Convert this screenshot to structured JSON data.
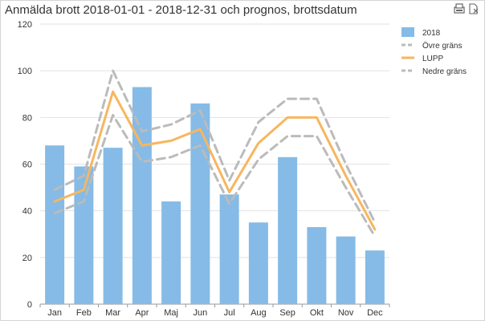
{
  "colors": {
    "bar": "#85bbe6",
    "upper": "#bbbbbb",
    "lower": "#bbbbbb",
    "forecast": "#f7b65f",
    "grid": "#e2e2e2",
    "text": "#333333"
  },
  "toolbar": {
    "icons": [
      "export-icon",
      "clear-selection-icon"
    ]
  },
  "chart_data": {
    "type": "bar",
    "title": "Anmälda brott 2018-01-01 - 2018-12-31 och prognos, brottsdatum",
    "xlabel": "",
    "ylabel": "",
    "ylim": [
      0,
      120
    ],
    "yticks": [
      0,
      20,
      40,
      60,
      80,
      100,
      120
    ],
    "grid": true,
    "legend_position": "top-right",
    "categories": [
      "Jan",
      "Feb",
      "Mar",
      "Apr",
      "Maj",
      "Jun",
      "Jul",
      "Aug",
      "Sep",
      "Okt",
      "Nov",
      "Dec"
    ],
    "series": [
      {
        "name": "2018",
        "kind": "bar",
        "values": [
          68,
          59,
          67,
          93,
          44,
          86,
          47,
          35,
          63,
          33,
          29,
          23
        ]
      },
      {
        "name": "Övre gräns",
        "kind": "dashed-line",
        "values": [
          49,
          55,
          100,
          74,
          77,
          83,
          53,
          78,
          88,
          88,
          60,
          35
        ]
      },
      {
        "name": "LUPP",
        "kind": "line",
        "values": [
          44,
          49,
          91,
          68,
          70,
          75,
          48,
          69,
          80,
          80,
          55,
          32
        ]
      },
      {
        "name": "Nedre gräns",
        "kind": "dashed-line",
        "values": [
          39,
          44,
          81,
          61,
          63,
          68,
          43,
          62,
          72,
          72,
          50,
          29
        ]
      }
    ]
  }
}
